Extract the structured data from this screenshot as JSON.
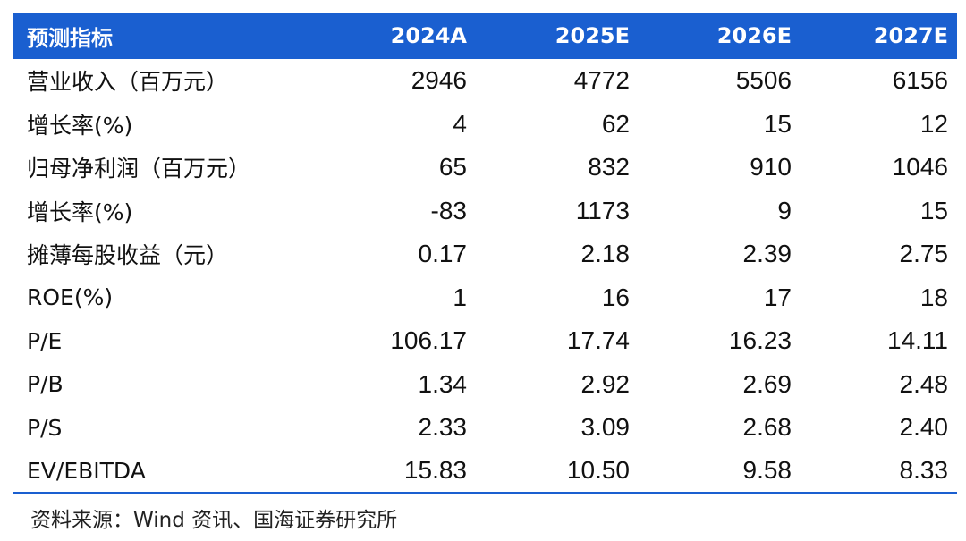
{
  "table": {
    "header": {
      "label": "预测指标",
      "years": [
        "2024A",
        "2025E",
        "2026E",
        "2027E"
      ]
    },
    "rows": [
      {
        "label": "营业收入（百万元）",
        "values": [
          "2946",
          "4772",
          "5506",
          "6156"
        ]
      },
      {
        "label": "增长率(%)",
        "values": [
          "4",
          "62",
          "15",
          "12"
        ]
      },
      {
        "label": "归母净利润（百万元）",
        "values": [
          "65",
          "832",
          "910",
          "1046"
        ]
      },
      {
        "label": "增长率(%)",
        "values": [
          "-83",
          "1173",
          "9",
          "15"
        ]
      },
      {
        "label": "摊薄每股收益（元）",
        "values": [
          "0.17",
          "2.18",
          "2.39",
          "2.75"
        ]
      },
      {
        "label": "ROE(%)",
        "values": [
          "1",
          "16",
          "17",
          "18"
        ]
      },
      {
        "label": "P/E",
        "values": [
          "106.17",
          "17.74",
          "16.23",
          "14.11"
        ]
      },
      {
        "label": "P/B",
        "values": [
          "1.34",
          "2.92",
          "2.69",
          "2.48"
        ]
      },
      {
        "label": "P/S",
        "values": [
          "2.33",
          "3.09",
          "2.68",
          "2.40"
        ]
      },
      {
        "label": "EV/EBITDA",
        "values": [
          "15.83",
          "10.50",
          "9.58",
          "8.33"
        ]
      }
    ]
  },
  "source": "资料来源：Wind 资讯、国海证券研究所",
  "colors": {
    "header_background": "#1a5fd0",
    "header_text": "#ffffff",
    "bottom_rule": "#1a5fd0"
  }
}
